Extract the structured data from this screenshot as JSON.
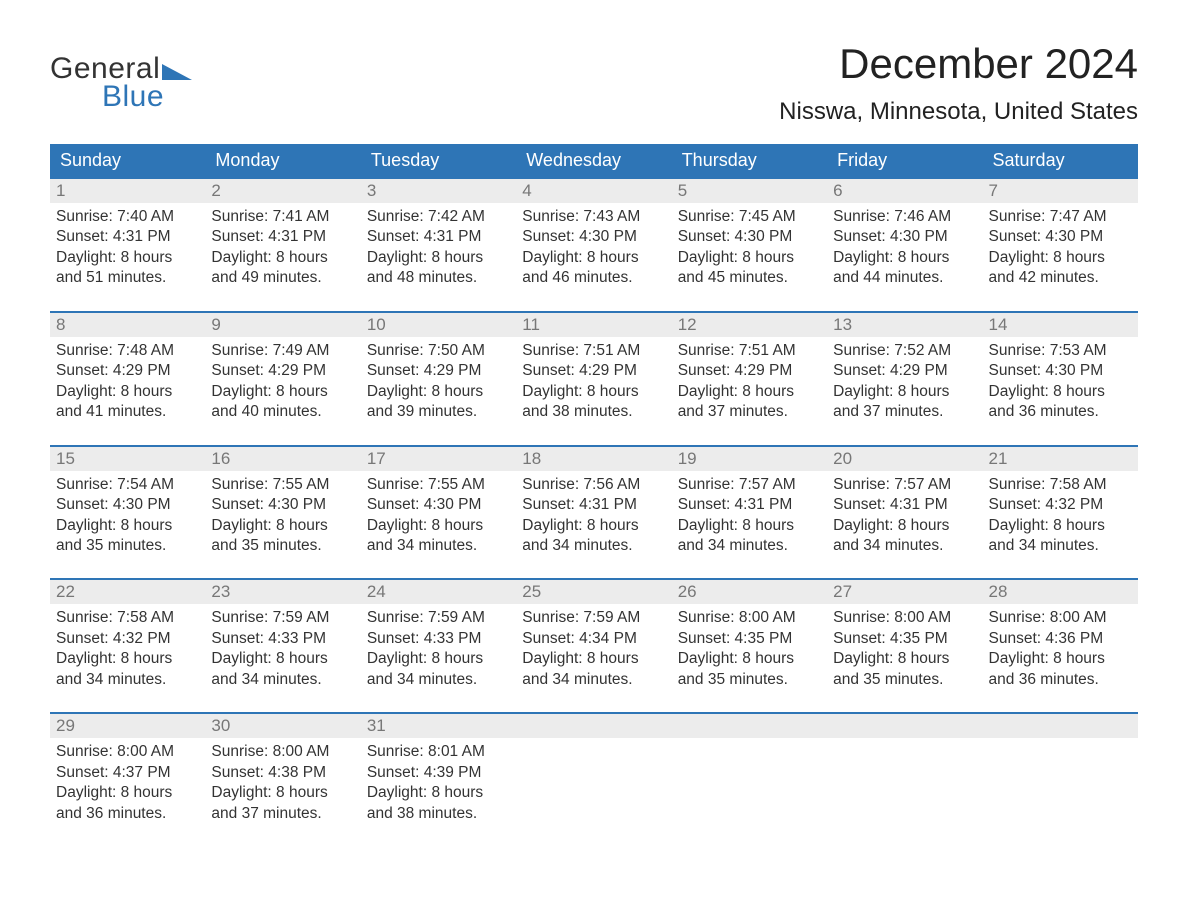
{
  "logo": {
    "text1": "General",
    "text2": "Blue",
    "accent_color": "#2e75b6"
  },
  "title": "December 2024",
  "location": "Nisswa, Minnesota, United States",
  "header_bg": "#2e75b6",
  "header_text_color": "#ffffff",
  "daynum_bg": "#ececec",
  "daynum_color": "#777777",
  "body_text_color": "#333333",
  "page_bg": "#ffffff",
  "font_family": "Arial",
  "title_fontsize": 42,
  "location_fontsize": 24,
  "weekday_fontsize": 18,
  "body_fontsize": 15.5,
  "weekdays": [
    "Sunday",
    "Monday",
    "Tuesday",
    "Wednesday",
    "Thursday",
    "Friday",
    "Saturday"
  ],
  "weeks": [
    [
      {
        "n": "1",
        "sr": "Sunrise: 7:40 AM",
        "ss": "Sunset: 4:31 PM",
        "d1": "Daylight: 8 hours",
        "d2": "and 51 minutes."
      },
      {
        "n": "2",
        "sr": "Sunrise: 7:41 AM",
        "ss": "Sunset: 4:31 PM",
        "d1": "Daylight: 8 hours",
        "d2": "and 49 minutes."
      },
      {
        "n": "3",
        "sr": "Sunrise: 7:42 AM",
        "ss": "Sunset: 4:31 PM",
        "d1": "Daylight: 8 hours",
        "d2": "and 48 minutes."
      },
      {
        "n": "4",
        "sr": "Sunrise: 7:43 AM",
        "ss": "Sunset: 4:30 PM",
        "d1": "Daylight: 8 hours",
        "d2": "and 46 minutes."
      },
      {
        "n": "5",
        "sr": "Sunrise: 7:45 AM",
        "ss": "Sunset: 4:30 PM",
        "d1": "Daylight: 8 hours",
        "d2": "and 45 minutes."
      },
      {
        "n": "6",
        "sr": "Sunrise: 7:46 AM",
        "ss": "Sunset: 4:30 PM",
        "d1": "Daylight: 8 hours",
        "d2": "and 44 minutes."
      },
      {
        "n": "7",
        "sr": "Sunrise: 7:47 AM",
        "ss": "Sunset: 4:30 PM",
        "d1": "Daylight: 8 hours",
        "d2": "and 42 minutes."
      }
    ],
    [
      {
        "n": "8",
        "sr": "Sunrise: 7:48 AM",
        "ss": "Sunset: 4:29 PM",
        "d1": "Daylight: 8 hours",
        "d2": "and 41 minutes."
      },
      {
        "n": "9",
        "sr": "Sunrise: 7:49 AM",
        "ss": "Sunset: 4:29 PM",
        "d1": "Daylight: 8 hours",
        "d2": "and 40 minutes."
      },
      {
        "n": "10",
        "sr": "Sunrise: 7:50 AM",
        "ss": "Sunset: 4:29 PM",
        "d1": "Daylight: 8 hours",
        "d2": "and 39 minutes."
      },
      {
        "n": "11",
        "sr": "Sunrise: 7:51 AM",
        "ss": "Sunset: 4:29 PM",
        "d1": "Daylight: 8 hours",
        "d2": "and 38 minutes."
      },
      {
        "n": "12",
        "sr": "Sunrise: 7:51 AM",
        "ss": "Sunset: 4:29 PM",
        "d1": "Daylight: 8 hours",
        "d2": "and 37 minutes."
      },
      {
        "n": "13",
        "sr": "Sunrise: 7:52 AM",
        "ss": "Sunset: 4:29 PM",
        "d1": "Daylight: 8 hours",
        "d2": "and 37 minutes."
      },
      {
        "n": "14",
        "sr": "Sunrise: 7:53 AM",
        "ss": "Sunset: 4:30 PM",
        "d1": "Daylight: 8 hours",
        "d2": "and 36 minutes."
      }
    ],
    [
      {
        "n": "15",
        "sr": "Sunrise: 7:54 AM",
        "ss": "Sunset: 4:30 PM",
        "d1": "Daylight: 8 hours",
        "d2": "and 35 minutes."
      },
      {
        "n": "16",
        "sr": "Sunrise: 7:55 AM",
        "ss": "Sunset: 4:30 PM",
        "d1": "Daylight: 8 hours",
        "d2": "and 35 minutes."
      },
      {
        "n": "17",
        "sr": "Sunrise: 7:55 AM",
        "ss": "Sunset: 4:30 PM",
        "d1": "Daylight: 8 hours",
        "d2": "and 34 minutes."
      },
      {
        "n": "18",
        "sr": "Sunrise: 7:56 AM",
        "ss": "Sunset: 4:31 PM",
        "d1": "Daylight: 8 hours",
        "d2": "and 34 minutes."
      },
      {
        "n": "19",
        "sr": "Sunrise: 7:57 AM",
        "ss": "Sunset: 4:31 PM",
        "d1": "Daylight: 8 hours",
        "d2": "and 34 minutes."
      },
      {
        "n": "20",
        "sr": "Sunrise: 7:57 AM",
        "ss": "Sunset: 4:31 PM",
        "d1": "Daylight: 8 hours",
        "d2": "and 34 minutes."
      },
      {
        "n": "21",
        "sr": "Sunrise: 7:58 AM",
        "ss": "Sunset: 4:32 PM",
        "d1": "Daylight: 8 hours",
        "d2": "and 34 minutes."
      }
    ],
    [
      {
        "n": "22",
        "sr": "Sunrise: 7:58 AM",
        "ss": "Sunset: 4:32 PM",
        "d1": "Daylight: 8 hours",
        "d2": "and 34 minutes."
      },
      {
        "n": "23",
        "sr": "Sunrise: 7:59 AM",
        "ss": "Sunset: 4:33 PM",
        "d1": "Daylight: 8 hours",
        "d2": "and 34 minutes."
      },
      {
        "n": "24",
        "sr": "Sunrise: 7:59 AM",
        "ss": "Sunset: 4:33 PM",
        "d1": "Daylight: 8 hours",
        "d2": "and 34 minutes."
      },
      {
        "n": "25",
        "sr": "Sunrise: 7:59 AM",
        "ss": "Sunset: 4:34 PM",
        "d1": "Daylight: 8 hours",
        "d2": "and 34 minutes."
      },
      {
        "n": "26",
        "sr": "Sunrise: 8:00 AM",
        "ss": "Sunset: 4:35 PM",
        "d1": "Daylight: 8 hours",
        "d2": "and 35 minutes."
      },
      {
        "n": "27",
        "sr": "Sunrise: 8:00 AM",
        "ss": "Sunset: 4:35 PM",
        "d1": "Daylight: 8 hours",
        "d2": "and 35 minutes."
      },
      {
        "n": "28",
        "sr": "Sunrise: 8:00 AM",
        "ss": "Sunset: 4:36 PM",
        "d1": "Daylight: 8 hours",
        "d2": "and 36 minutes."
      }
    ],
    [
      {
        "n": "29",
        "sr": "Sunrise: 8:00 AM",
        "ss": "Sunset: 4:37 PM",
        "d1": "Daylight: 8 hours",
        "d2": "and 36 minutes."
      },
      {
        "n": "30",
        "sr": "Sunrise: 8:00 AM",
        "ss": "Sunset: 4:38 PM",
        "d1": "Daylight: 8 hours",
        "d2": "and 37 minutes."
      },
      {
        "n": "31",
        "sr": "Sunrise: 8:01 AM",
        "ss": "Sunset: 4:39 PM",
        "d1": "Daylight: 8 hours",
        "d2": "and 38 minutes."
      },
      {
        "empty": true
      },
      {
        "empty": true
      },
      {
        "empty": true
      },
      {
        "empty": true
      }
    ]
  ]
}
